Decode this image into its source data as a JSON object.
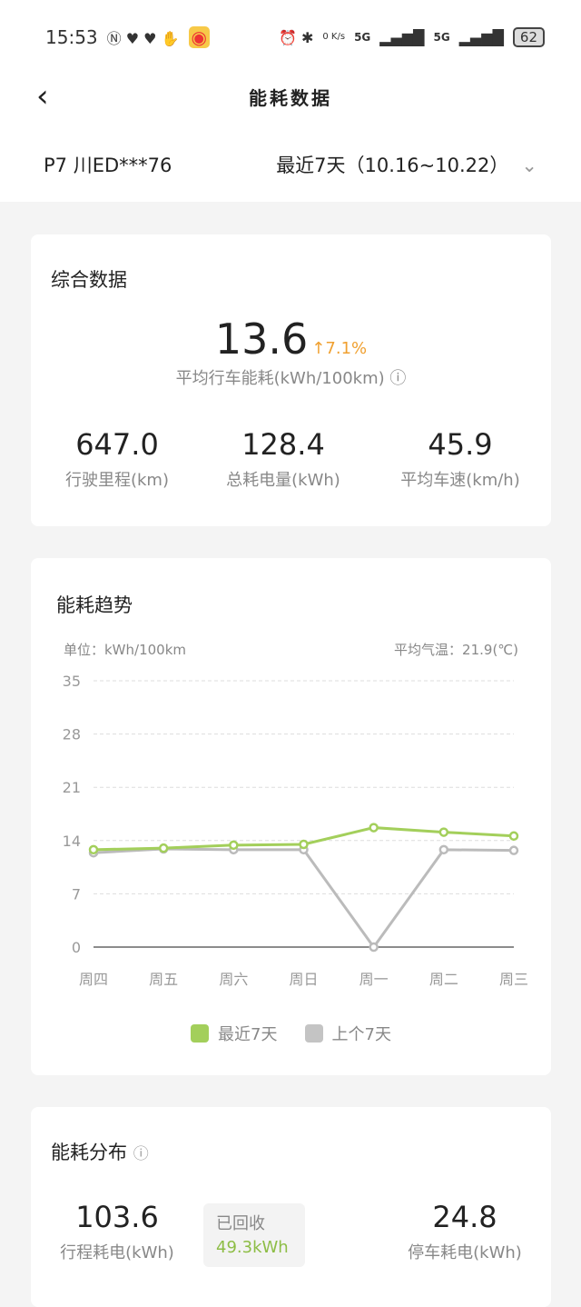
{
  "status": {
    "time": "15:53",
    "net_speed": "0 K/s",
    "signal1": "5G",
    "signal2": "5G",
    "battery": "62"
  },
  "nav": {
    "title": "能耗数据"
  },
  "selector": {
    "vehicle": "P7 川ED***76",
    "range": "最近7天（10.16~10.22）"
  },
  "summary": {
    "title": "综合数据",
    "avg_value": "13.6",
    "change": "7.1%",
    "avg_label": "平均行车能耗(kWh/100km)",
    "stats": [
      {
        "value": "647.0",
        "label": "行驶里程(km)"
      },
      {
        "value": "128.4",
        "label": "总耗电量(kWh)"
      },
      {
        "value": "45.9",
        "label": "平均车速(km/h)"
      }
    ]
  },
  "trend": {
    "title": "能耗趋势",
    "unit": "单位：kWh/100km",
    "temp": "平均气温：21.9(℃)"
  },
  "chart_data": {
    "type": "line",
    "categories": [
      "周四",
      "周五",
      "周六",
      "周日",
      "周一",
      "周二",
      "周三"
    ],
    "ylim": [
      0,
      35
    ],
    "yticks": [
      0,
      7,
      14,
      21,
      28,
      35
    ],
    "grid": true,
    "legend": "bottom",
    "series": [
      {
        "name": "最近7天",
        "color": "#a3cf5b",
        "values": [
          12.8,
          13.0,
          13.4,
          13.5,
          15.7,
          15.1,
          14.6
        ]
      },
      {
        "name": "上个7天",
        "color": "#bbbbbb",
        "values": [
          12.4,
          12.9,
          12.8,
          12.8,
          0,
          12.8,
          12.7
        ]
      }
    ]
  },
  "dist": {
    "title": "能耗分布",
    "drive_value": "103.6",
    "drive_label": "行程耗电(kWh)",
    "recovered_label": "已回收",
    "recovered_value": "49.3kWh",
    "park_value": "24.8",
    "park_label": "停车耗电(kWh)"
  },
  "colors": {
    "accent": "#a3cf5b",
    "up": "#f0a030"
  }
}
